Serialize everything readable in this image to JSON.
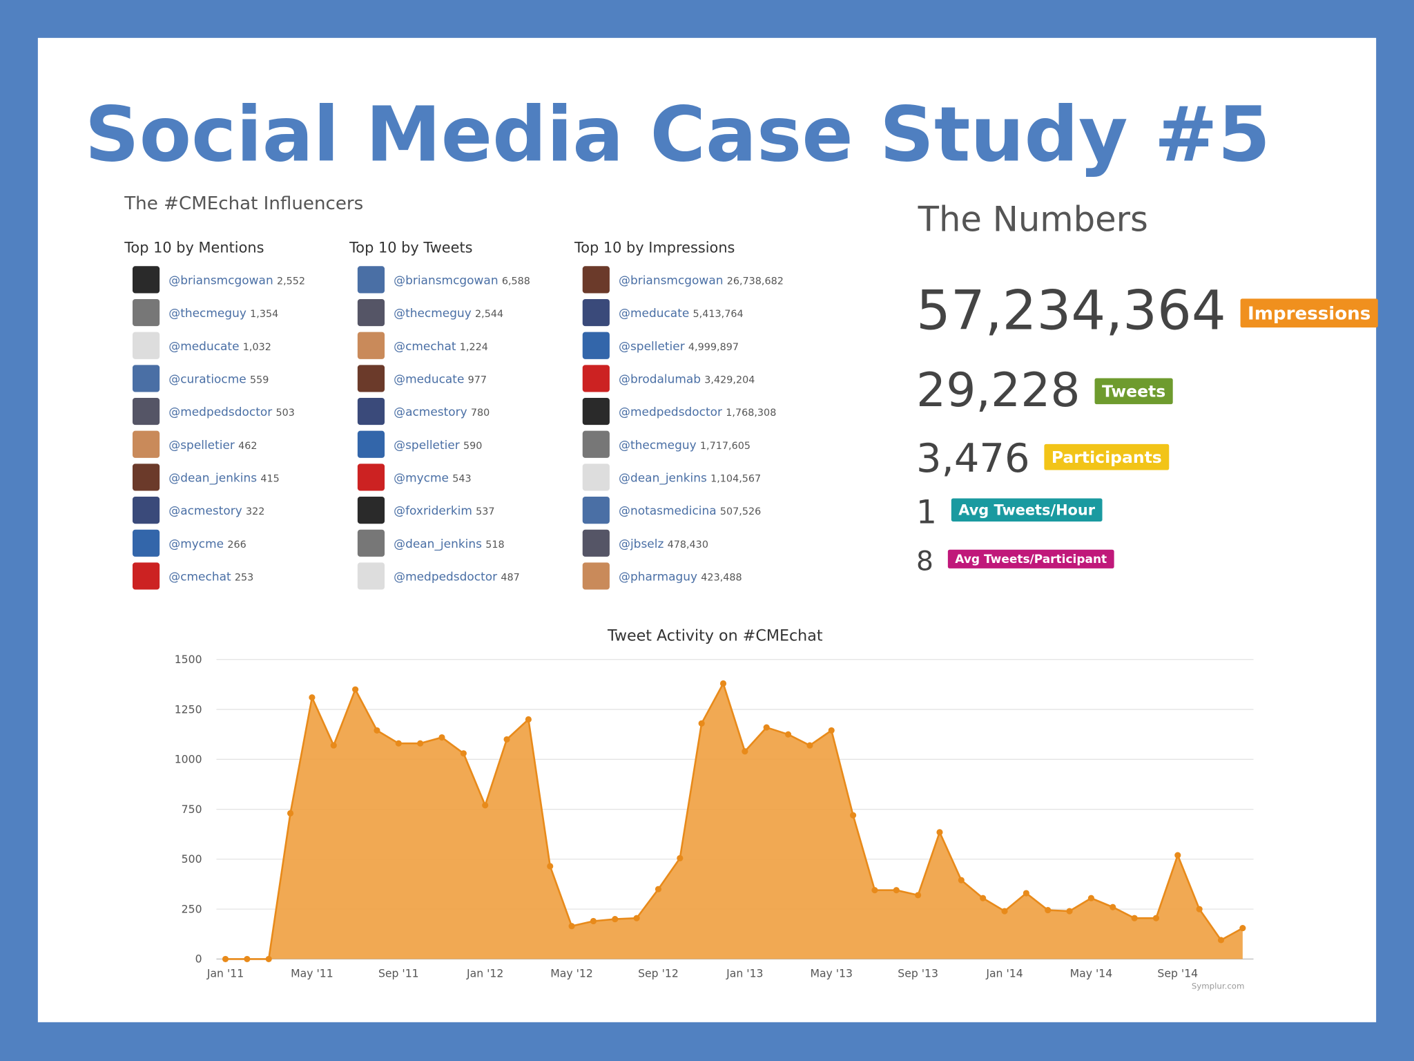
{
  "title": "Social Media Case Study #5",
  "influencers": {
    "heading": "The #CMEchat Influencers",
    "columns": [
      {
        "heading": "Top 10 by Mentions",
        "entries": [
          {
            "handle": "@briansmcgowan",
            "count": "2,552"
          },
          {
            "handle": "@thecmeguy",
            "count": "1,354"
          },
          {
            "handle": "@meducate",
            "count": "1,032"
          },
          {
            "handle": "@curatiocme",
            "count": "559"
          },
          {
            "handle": "@medpedsdoctor",
            "count": "503"
          },
          {
            "handle": "@spelletier",
            "count": "462"
          },
          {
            "handle": "@dean_jenkins",
            "count": "415"
          },
          {
            "handle": "@acmestory",
            "count": "322"
          },
          {
            "handle": "@mycme",
            "count": "266"
          },
          {
            "handle": "@cmechat",
            "count": "253"
          }
        ]
      },
      {
        "heading": "Top 10 by Tweets",
        "entries": [
          {
            "handle": "@briansmcgowan",
            "count": "6,588"
          },
          {
            "handle": "@thecmeguy",
            "count": "2,544"
          },
          {
            "handle": "@cmechat",
            "count": "1,224"
          },
          {
            "handle": "@meducate",
            "count": "977"
          },
          {
            "handle": "@acmestory",
            "count": "780"
          },
          {
            "handle": "@spelletier",
            "count": "590"
          },
          {
            "handle": "@mycme",
            "count": "543"
          },
          {
            "handle": "@foxriderkim",
            "count": "537"
          },
          {
            "handle": "@dean_jenkins",
            "count": "518"
          },
          {
            "handle": "@medpedsdoctor",
            "count": "487"
          }
        ]
      },
      {
        "heading": "Top 10 by Impressions",
        "entries": [
          {
            "handle": "@briansmcgowan",
            "count": "26,738,682"
          },
          {
            "handle": "@meducate",
            "count": "5,413,764"
          },
          {
            "handle": "@spelletier",
            "count": "4,999,897"
          },
          {
            "handle": "@brodalumab",
            "count": "3,429,204"
          },
          {
            "handle": "@medpedsdoctor",
            "count": "1,768,308"
          },
          {
            "handle": "@thecmeguy",
            "count": "1,717,605"
          },
          {
            "handle": "@dean_jenkins",
            "count": "1,104,567"
          },
          {
            "handle": "@notasmedicina",
            "count": "507,526"
          },
          {
            "handle": "@jbselz",
            "count": "478,430"
          },
          {
            "handle": "@pharmaguy",
            "count": "423,488"
          }
        ]
      }
    ]
  },
  "numbers": {
    "heading": "The Numbers",
    "items": [
      {
        "value": "57,234,364",
        "label": "Impressions"
      },
      {
        "value": "29,228",
        "label": "Tweets"
      },
      {
        "value": "3,476",
        "label": "Participants"
      },
      {
        "value": "1",
        "label": "Avg Tweets/Hour"
      },
      {
        "value": "8",
        "label": "Avg Tweets/Participant"
      }
    ]
  },
  "chart_data": {
    "type": "area",
    "title": "Tweet Activity on #CMEchat",
    "credit": "Symplur.com",
    "color": "#f0a040",
    "categories": [
      "Jan '11",
      null,
      null,
      null,
      "May '11",
      null,
      null,
      null,
      "Sep '11",
      null,
      null,
      null,
      "Jan '12",
      null,
      null,
      null,
      "May '12",
      null,
      null,
      null,
      "Sep '12",
      null,
      null,
      null,
      "Jan '13",
      null,
      null,
      null,
      "May '13",
      null,
      null,
      null,
      "Sep '13",
      null,
      null,
      null,
      "Jan '14",
      null,
      null,
      null,
      "May '14",
      null,
      null,
      null,
      "Sep '14",
      null,
      null,
      null
    ],
    "values": [
      0,
      0,
      0,
      730,
      1310,
      1070,
      1350,
      1145,
      1080,
      1080,
      1110,
      1030,
      770,
      1100,
      1200,
      465,
      165,
      190,
      200,
      205,
      350,
      505,
      1180,
      1380,
      1040,
      1160,
      1125,
      1070,
      1145,
      720,
      345,
      345,
      320,
      635,
      395,
      305,
      240,
      330,
      245,
      240,
      305,
      260,
      205,
      205,
      520,
      250,
      95,
      155
    ],
    "ylim": [
      0,
      1500
    ],
    "yticks": [
      0,
      250,
      500,
      750,
      1000,
      1250,
      1500
    ],
    "grid": true
  }
}
